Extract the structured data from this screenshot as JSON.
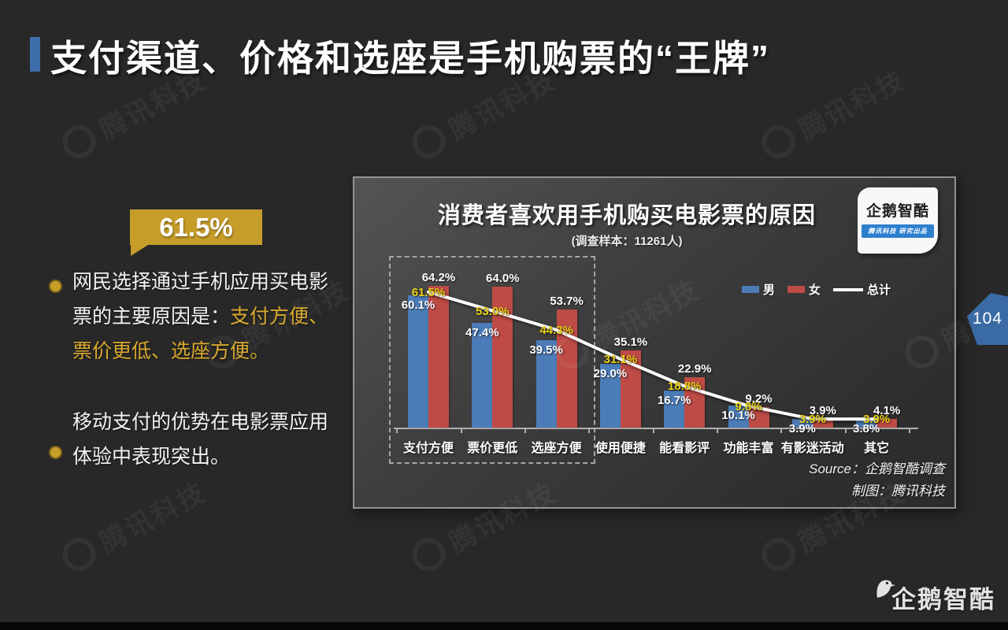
{
  "slide": {
    "title": "支付渠道、价格和选座是手机购票的“王牌”",
    "page_number": "104",
    "watermark_text": "腾讯科技",
    "footer_logo_text": "企鹅智酷"
  },
  "callout": {
    "value": "61.5%",
    "bullet1_white": "网民选择通过手机应用买电影票的主要原因是：",
    "bullet1_gold": "支付方便、票价更低、选座方便。",
    "bullet2": "移动支付的优势在电影票应用体验中表现突出。"
  },
  "chart_panel": {
    "badge_name": "企鹅智酷",
    "badge_tagline": "腾讯科技  研究出品",
    "source_line1": "Source：企鹅智酷调查",
    "source_line2": "制图：腾讯科技"
  },
  "chart_data": {
    "type": "bar",
    "title": "消费者喜欢用手机购买电影票的原因",
    "subtitle": "(调查样本：11261人)",
    "categories": [
      "支付方便",
      "票价更低",
      "选座方便",
      "使用便捷",
      "能看影评",
      "功能丰富",
      "有影迷活动",
      "其它"
    ],
    "series": [
      {
        "name": "男",
        "type": "bar",
        "color": "#4C7CB8",
        "label_color": "#ffffff",
        "values": [
          60.1,
          47.4,
          39.5,
          29.0,
          16.7,
          10.1,
          3.9,
          3.8
        ]
      },
      {
        "name": "女",
        "type": "bar",
        "color": "#BE4B45",
        "label_color": "#ffffff",
        "values": [
          64.2,
          64.0,
          53.7,
          35.1,
          22.9,
          9.2,
          3.9,
          4.1
        ]
      },
      {
        "name": "总计",
        "type": "line",
        "color": "#ffffff",
        "label_color": "#EBD318",
        "values": [
          61.5,
          53.0,
          44.3,
          31.1,
          18.8,
          9.8,
          3.9,
          3.9
        ]
      }
    ],
    "value_suffix": "%",
    "ylim": [
      0,
      70
    ],
    "grid": false,
    "legend_position": "upper-right",
    "annotation": "虚线框标出前三项：支付方便、票价更低、选座方便"
  }
}
